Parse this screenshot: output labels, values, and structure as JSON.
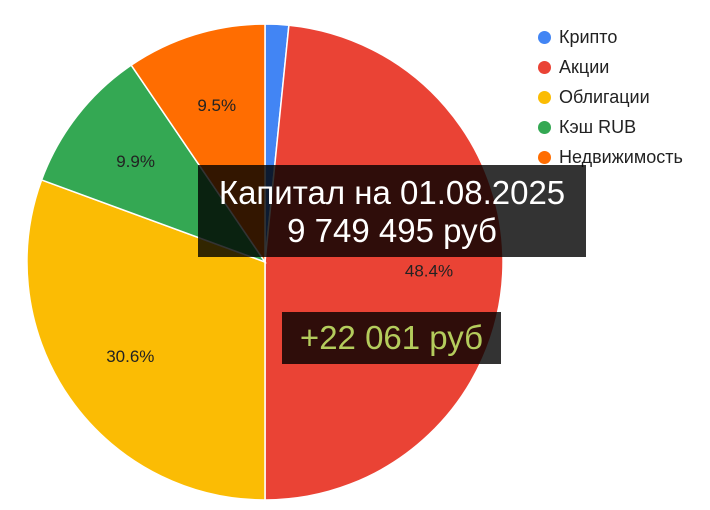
{
  "chart_data": {
    "type": "pie",
    "slices": [
      {
        "label": "Крипто",
        "value": 1.6,
        "color": "#4285f4",
        "pct_label": ""
      },
      {
        "label": "Акции",
        "value": 48.4,
        "color": "#ea4335",
        "pct_label": "48.4%"
      },
      {
        "label": "Облигации",
        "value": 30.6,
        "color": "#fbbc04",
        "pct_label": "30.6%"
      },
      {
        "label": "Кэш RUB",
        "value": 9.9,
        "color": "#34a853",
        "pct_label": "9.9%"
      },
      {
        "label": "Недвижимость",
        "value": 9.5,
        "color": "#ff6d01",
        "pct_label": "9.5%"
      }
    ],
    "legend_position": "top-right"
  },
  "overlay": {
    "capital_line": "Капитал на 01.08.2025",
    "amount_line": "9 749 495 руб",
    "delta": "+22 061 руб"
  }
}
